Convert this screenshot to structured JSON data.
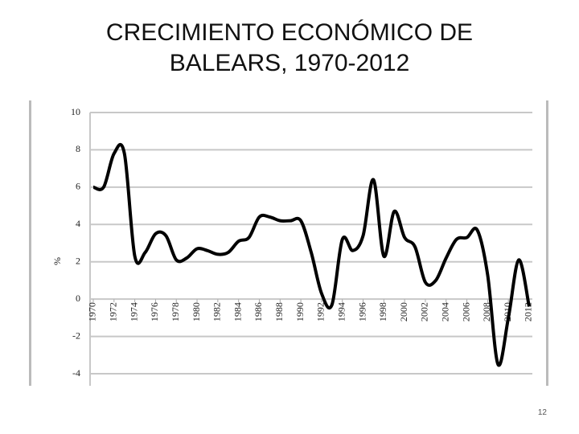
{
  "chart_data": {
    "type": "line",
    "title": "CRECIMIENTO ECONÓMICO DE BALEARS, 1970-2012",
    "y_label": "%",
    "x": [
      1970,
      1971,
      1972,
      1973,
      1974,
      1975,
      1976,
      1977,
      1978,
      1979,
      1980,
      1981,
      1982,
      1983,
      1984,
      1985,
      1986,
      1987,
      1988,
      1989,
      1990,
      1991,
      1992,
      1993,
      1994,
      1995,
      1996,
      1997,
      1998,
      1999,
      2000,
      2001,
      2002,
      2003,
      2004,
      2005,
      2006,
      2007,
      2008,
      2009,
      2010,
      2011,
      2012
    ],
    "values": [
      6.0,
      6.0,
      7.8,
      7.8,
      2.3,
      2.5,
      3.5,
      3.4,
      2.1,
      2.2,
      2.7,
      2.6,
      2.4,
      2.5,
      3.1,
      3.3,
      4.4,
      4.4,
      4.2,
      4.2,
      4.2,
      2.5,
      0.3,
      -0.3,
      3.2,
      2.6,
      3.4,
      6.4,
      2.3,
      4.7,
      3.3,
      2.8,
      0.9,
      1.0,
      2.2,
      3.2,
      3.3,
      3.7,
      1.3,
      -3.5,
      -1.0,
      2.1,
      -0.4
    ],
    "color": "#000000",
    "xlim": [
      1970,
      2012
    ],
    "xticks": [
      1970,
      1972,
      1974,
      1976,
      1978,
      1980,
      1982,
      1984,
      1986,
      1988,
      1990,
      1992,
      1994,
      1996,
      1998,
      2000,
      2002,
      2004,
      2006,
      2008,
      2010,
      2012
    ],
    "ylim": [
      -4,
      10
    ],
    "yticks": [
      -4,
      -2,
      0,
      2,
      4,
      6,
      8,
      10
    ],
    "grid": true
  },
  "page_number": "12"
}
